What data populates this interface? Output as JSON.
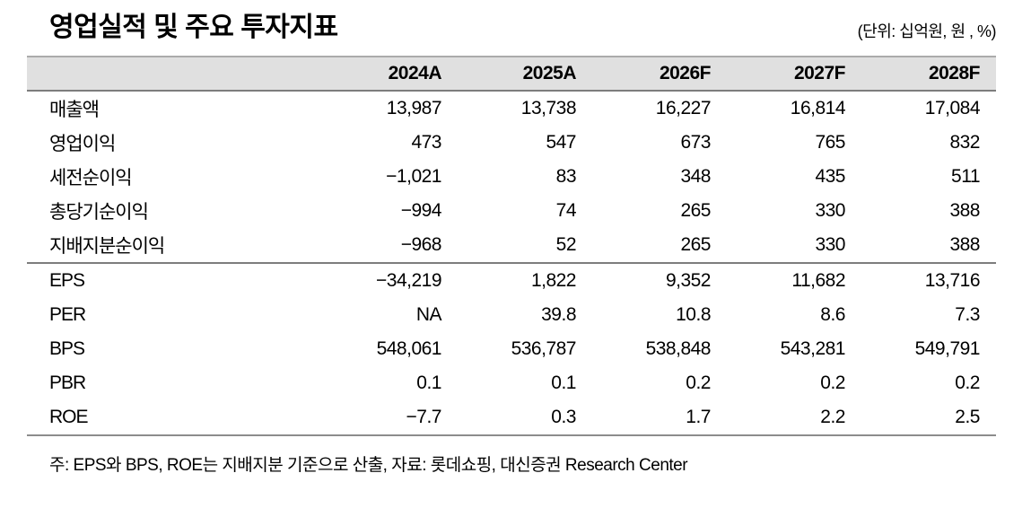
{
  "title": "영업실적 및 주요 투자지표",
  "unit_label": "(단위: 십억원, 원 , %)",
  "table": {
    "header": [
      "2024A",
      "2025A",
      "2026F",
      "2027F",
      "2028F"
    ],
    "groups": [
      {
        "name": "earnings",
        "rows": [
          {
            "label": "매출액",
            "values": [
              "13,987",
              "13,738",
              "16,227",
              "16,814",
              "17,084"
            ]
          },
          {
            "label": "영업이익",
            "values": [
              "473",
              "547",
              "673",
              "765",
              "832"
            ]
          },
          {
            "label": "세전순이익",
            "values": [
              "−1,021",
              "83",
              "348",
              "435",
              "511"
            ]
          },
          {
            "label": "총당기순이익",
            "values": [
              "−994",
              "74",
              "265",
              "330",
              "388"
            ]
          },
          {
            "label": "지배지분순이익",
            "values": [
              "−968",
              "52",
              "265",
              "330",
              "388"
            ]
          }
        ]
      },
      {
        "name": "ratios",
        "rows": [
          {
            "label": "EPS",
            "values": [
              "−34,219",
              "1,822",
              "9,352",
              "11,682",
              "13,716"
            ]
          },
          {
            "label": "PER",
            "values": [
              "NA",
              "39.8",
              "10.8",
              "8.6",
              "7.3"
            ]
          },
          {
            "label": "BPS",
            "values": [
              "548,061",
              "536,787",
              "538,848",
              "543,281",
              "549,791"
            ]
          },
          {
            "label": "PBR",
            "values": [
              "0.1",
              "0.1",
              "0.2",
              "0.2",
              "0.2"
            ]
          },
          {
            "label": "ROE",
            "values": [
              "−7.7",
              "0.3",
              "1.7",
              "2.2",
              "2.5"
            ]
          }
        ]
      }
    ]
  },
  "footnote": "주: EPS와 BPS, ROE는 지배지분 기준으로 산출, 자료: 롯데쇼핑, 대신증권 Research Center"
}
